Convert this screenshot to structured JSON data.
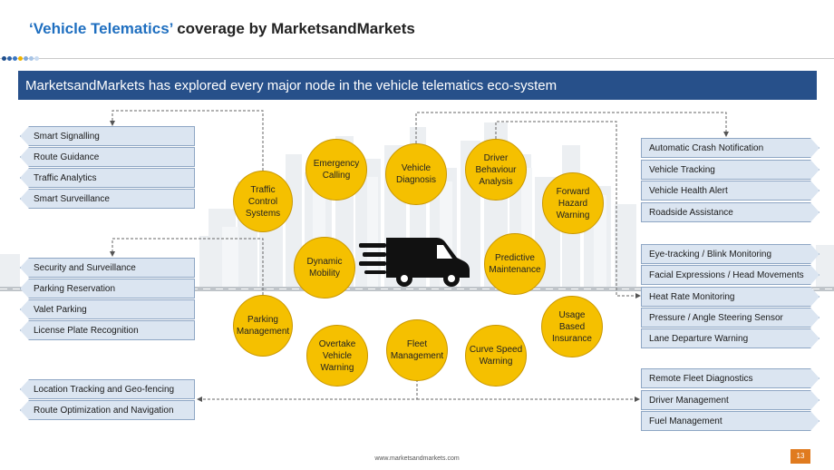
{
  "header": {
    "title_accent": "‘Vehicle Telematics’",
    "title_rest": "coverage by MarketsandMarkets",
    "banner": "MarketsandMarkets has explored every major node in the vehicle telematics eco-system"
  },
  "colors": {
    "accent": "#1f6fc0",
    "banner_bg": "#27508a",
    "node_fill": "#f5c000",
    "box_fill": "#dbe5f1",
    "page_badge": "#e07b1f"
  },
  "left_groups": {
    "traffic": [
      "Smart Signalling",
      "Route Guidance",
      "Traffic Analytics",
      "Smart Surveillance"
    ],
    "parking": [
      "Security and Surveillance",
      "Parking Reservation",
      "Valet Parking",
      "License Plate Recognition"
    ],
    "fleet": [
      "Location Tracking and Geo-fencing",
      "Route Optimization and Navigation"
    ]
  },
  "right_groups": {
    "safety": [
      "Automatic Crash Notification",
      "Vehicle Tracking",
      "Vehicle Health Alert",
      "Roadside Assistance"
    ],
    "driver": [
      "Eye-tracking / Blink Monitoring",
      "Facial Expressions / Head Movements",
      "Heat Rate Monitoring",
      "Pressure / Angle Steering Sensor",
      "Lane Departure Warning"
    ],
    "fleet": [
      "Remote Fleet Diagnostics",
      "Driver Management",
      "Fuel Management"
    ]
  },
  "nodes": {
    "traffic": "Traffic\nControl\nSystems",
    "emergency": "Emergency\nCalling",
    "diagnosis": "Vehicle\nDiagnosis",
    "driver_behaviour": "Driver\nBehaviour\nAnalysis",
    "forward_hazard": "Forward\nHazard\nWarning",
    "dynamic_mobility": "Dynamic\nMobility",
    "predictive": "Predictive\nMaintenance",
    "parking": "Parking\nManagement",
    "overtake": "Overtake\nVehicle\nWarning",
    "fleet": "Fleet\nManagement",
    "curve": "Curve Speed\nWarning",
    "usage": "Usage\nBased\nInsurance"
  },
  "footer": {
    "url": "www.marketsandmarkets.com",
    "page": "13"
  }
}
